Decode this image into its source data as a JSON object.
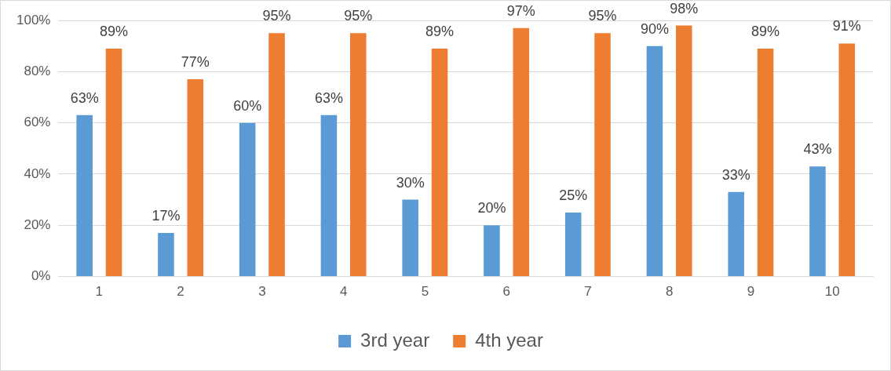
{
  "chart_data": {
    "type": "bar",
    "categories": [
      "1",
      "2",
      "3",
      "4",
      "5",
      "6",
      "7",
      "8",
      "9",
      "10"
    ],
    "series": [
      {
        "name": "3rd year",
        "color": "#5b9bd5",
        "values": [
          63,
          17,
          60,
          63,
          30,
          20,
          25,
          90,
          33,
          43
        ],
        "value_labels": [
          "63%",
          "17%",
          "60%",
          "63%",
          "30%",
          "20%",
          "25%",
          "90%",
          "33%",
          "43%"
        ]
      },
      {
        "name": "4th year",
        "color": "#ed7d31",
        "values": [
          89,
          77,
          95,
          95,
          89,
          97,
          95,
          98,
          89,
          91
        ],
        "value_labels": [
          "89%",
          "77%",
          "95%",
          "95%",
          "89%",
          "97%",
          "95%",
          "98%",
          "89%",
          "91%"
        ]
      }
    ],
    "ylim": [
      0,
      100
    ],
    "yticks": [
      {
        "value": 0,
        "label": "0%"
      },
      {
        "value": 20,
        "label": "20%"
      },
      {
        "value": 40,
        "label": "40%"
      },
      {
        "value": 60,
        "label": "60%"
      },
      {
        "value": 80,
        "label": "80%"
      },
      {
        "value": 100,
        "label": "100%"
      }
    ],
    "grid": "y",
    "legend": "bottom"
  }
}
